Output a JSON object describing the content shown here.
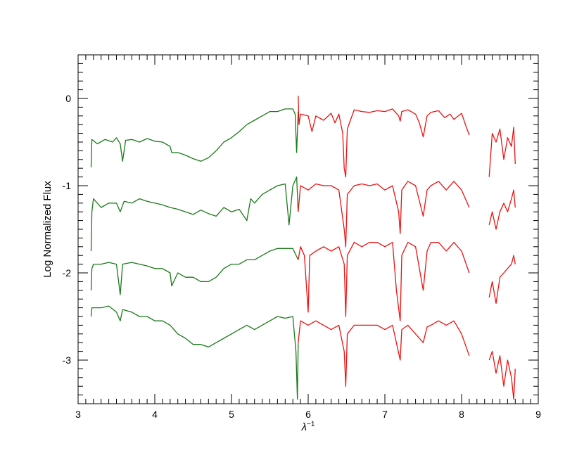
{
  "chart_data": {
    "type": "line",
    "title": "",
    "xlabel": "λ",
    "xlabel_sup": "−1",
    "ylabel": "Log Normalized Flux",
    "xlim": [
      3,
      9
    ],
    "ylim": [
      -3.5,
      0.5
    ],
    "x_ticks": [
      {
        "value": 3,
        "label": "3"
      },
      {
        "value": 4,
        "label": "4"
      },
      {
        "value": 5,
        "label": "5"
      },
      {
        "value": 6,
        "label": "6"
      },
      {
        "value": 7,
        "label": "7"
      },
      {
        "value": 8,
        "label": "8"
      },
      {
        "value": 9,
        "label": "9"
      }
    ],
    "y_ticks": [
      {
        "value": 0,
        "label": "0"
      },
      {
        "value": -1,
        "label": "-1"
      },
      {
        "value": -2,
        "label": "-2"
      },
      {
        "value": -3,
        "label": "-3"
      }
    ],
    "x_minor_step": 0.1,
    "y_minor_step": 0.1,
    "grid": false,
    "legend": "none",
    "colors": {
      "low_range": "#1a7a1a",
      "high_range": "#ee1111"
    },
    "series": [
      {
        "color": "#1a7a1a",
        "points": [
          [
            3.17,
            -0.79
          ],
          [
            3.18,
            -0.47
          ],
          [
            3.25,
            -0.52
          ],
          [
            3.35,
            -0.47
          ],
          [
            3.45,
            -0.5
          ],
          [
            3.5,
            -0.45
          ],
          [
            3.55,
            -0.52
          ],
          [
            3.58,
            -0.72
          ],
          [
            3.62,
            -0.48
          ],
          [
            3.7,
            -0.47
          ],
          [
            3.8,
            -0.5
          ],
          [
            3.9,
            -0.46
          ],
          [
            4.0,
            -0.49
          ],
          [
            4.1,
            -0.5
          ],
          [
            4.2,
            -0.55
          ],
          [
            4.22,
            -0.62
          ],
          [
            4.3,
            -0.62
          ],
          [
            4.4,
            -0.65
          ],
          [
            4.5,
            -0.69
          ],
          [
            4.6,
            -0.72
          ],
          [
            4.7,
            -0.68
          ],
          [
            4.8,
            -0.6
          ],
          [
            4.9,
            -0.5
          ],
          [
            5.0,
            -0.45
          ],
          [
            5.1,
            -0.38
          ],
          [
            5.2,
            -0.3
          ],
          [
            5.3,
            -0.25
          ],
          [
            5.4,
            -0.2
          ],
          [
            5.5,
            -0.15
          ],
          [
            5.6,
            -0.15
          ],
          [
            5.7,
            -0.12
          ],
          [
            5.8,
            -0.12
          ],
          [
            5.83,
            -0.18
          ],
          [
            5.85,
            -0.62
          ],
          [
            5.87,
            -0.15
          ]
        ]
      },
      {
        "color": "#ee1111",
        "points": [
          [
            5.87,
            0.03
          ],
          [
            5.88,
            -0.3
          ],
          [
            5.9,
            -0.18
          ],
          [
            6.0,
            -0.2
          ],
          [
            6.05,
            -0.38
          ],
          [
            6.1,
            -0.2
          ],
          [
            6.2,
            -0.25
          ],
          [
            6.3,
            -0.17
          ],
          [
            6.35,
            -0.28
          ],
          [
            6.4,
            -0.18
          ],
          [
            6.45,
            -0.4
          ],
          [
            6.47,
            -0.8
          ],
          [
            6.49,
            -0.9
          ],
          [
            6.51,
            -0.35
          ],
          [
            6.6,
            -0.13
          ],
          [
            6.7,
            -0.15
          ],
          [
            6.8,
            -0.16
          ],
          [
            6.9,
            -0.14
          ],
          [
            7.0,
            -0.15
          ],
          [
            7.1,
            -0.12
          ],
          [
            7.18,
            -0.2
          ],
          [
            7.2,
            -0.26
          ],
          [
            7.22,
            -0.15
          ],
          [
            7.3,
            -0.13
          ],
          [
            7.4,
            -0.18
          ],
          [
            7.45,
            -0.28
          ],
          [
            7.5,
            -0.44
          ],
          [
            7.55,
            -0.2
          ],
          [
            7.6,
            -0.16
          ],
          [
            7.7,
            -0.14
          ],
          [
            7.78,
            -0.22
          ],
          [
            7.85,
            -0.18
          ],
          [
            7.9,
            -0.24
          ],
          [
            8.0,
            -0.17
          ],
          [
            8.05,
            -0.3
          ],
          [
            8.1,
            -0.42
          ]
        ]
      },
      {
        "color": "#ee1111",
        "points": [
          [
            8.36,
            -0.9
          ],
          [
            8.4,
            -0.4
          ],
          [
            8.45,
            -0.5
          ],
          [
            8.5,
            -0.35
          ],
          [
            8.55,
            -0.7
          ],
          [
            8.6,
            -0.45
          ],
          [
            8.65,
            -0.55
          ],
          [
            8.68,
            -0.33
          ],
          [
            8.7,
            -0.75
          ]
        ]
      },
      {
        "color": "#1a7a1a",
        "points": [
          [
            3.17,
            -1.75
          ],
          [
            3.18,
            -1.3
          ],
          [
            3.2,
            -1.15
          ],
          [
            3.3,
            -1.25
          ],
          [
            3.4,
            -1.2
          ],
          [
            3.5,
            -1.2
          ],
          [
            3.55,
            -1.3
          ],
          [
            3.6,
            -1.18
          ],
          [
            3.7,
            -1.2
          ],
          [
            3.8,
            -1.15
          ],
          [
            3.9,
            -1.18
          ],
          [
            4.0,
            -1.2
          ],
          [
            4.1,
            -1.22
          ],
          [
            4.2,
            -1.25
          ],
          [
            4.3,
            -1.27
          ],
          [
            4.4,
            -1.3
          ],
          [
            4.5,
            -1.33
          ],
          [
            4.6,
            -1.28
          ],
          [
            4.7,
            -1.32
          ],
          [
            4.8,
            -1.35
          ],
          [
            4.9,
            -1.25
          ],
          [
            5.0,
            -1.3
          ],
          [
            5.1,
            -1.27
          ],
          [
            5.2,
            -1.4
          ],
          [
            5.25,
            -1.15
          ],
          [
            5.3,
            -1.2
          ],
          [
            5.4,
            -1.1
          ],
          [
            5.5,
            -1.05
          ],
          [
            5.6,
            -1.0
          ],
          [
            5.7,
            -0.98
          ],
          [
            5.75,
            -1.45
          ],
          [
            5.8,
            -1.0
          ],
          [
            5.85,
            -0.9
          ],
          [
            5.87,
            -1.3
          ]
        ]
      },
      {
        "color": "#ee1111",
        "points": [
          [
            5.87,
            -1.3
          ],
          [
            5.9,
            -1.0
          ],
          [
            6.0,
            -1.05
          ],
          [
            6.1,
            -0.98
          ],
          [
            6.2,
            -1.0
          ],
          [
            6.3,
            -1.0
          ],
          [
            6.4,
            -1.05
          ],
          [
            6.47,
            -1.5
          ],
          [
            6.49,
            -1.7
          ],
          [
            6.51,
            -1.1
          ],
          [
            6.6,
            -1.0
          ],
          [
            6.7,
            -0.98
          ],
          [
            6.8,
            -1.0
          ],
          [
            6.9,
            -0.98
          ],
          [
            7.0,
            -1.05
          ],
          [
            7.1,
            -1.0
          ],
          [
            7.18,
            -1.3
          ],
          [
            7.2,
            -1.55
          ],
          [
            7.22,
            -1.05
          ],
          [
            7.3,
            -0.95
          ],
          [
            7.4,
            -1.0
          ],
          [
            7.5,
            -1.35
          ],
          [
            7.55,
            -1.05
          ],
          [
            7.6,
            -1.0
          ],
          [
            7.7,
            -0.95
          ],
          [
            7.8,
            -1.05
          ],
          [
            7.9,
            -0.95
          ],
          [
            8.0,
            -1.05
          ],
          [
            8.1,
            -1.25
          ]
        ]
      },
      {
        "color": "#ee1111",
        "points": [
          [
            8.36,
            -1.45
          ],
          [
            8.4,
            -1.3
          ],
          [
            8.45,
            -1.5
          ],
          [
            8.5,
            -1.3
          ],
          [
            8.55,
            -1.2
          ],
          [
            8.6,
            -1.3
          ],
          [
            8.65,
            -1.15
          ],
          [
            8.68,
            -1.05
          ],
          [
            8.7,
            -1.25
          ]
        ]
      },
      {
        "color": "#1a7a1a",
        "points": [
          [
            3.17,
            -2.2
          ],
          [
            3.18,
            -1.95
          ],
          [
            3.2,
            -1.9
          ],
          [
            3.3,
            -1.9
          ],
          [
            3.4,
            -1.88
          ],
          [
            3.5,
            -1.9
          ],
          [
            3.55,
            -2.25
          ],
          [
            3.58,
            -1.9
          ],
          [
            3.7,
            -1.88
          ],
          [
            3.8,
            -1.9
          ],
          [
            3.9,
            -1.92
          ],
          [
            4.0,
            -1.95
          ],
          [
            4.1,
            -1.95
          ],
          [
            4.2,
            -2.0
          ],
          [
            4.22,
            -2.15
          ],
          [
            4.3,
            -2.0
          ],
          [
            4.4,
            -2.05
          ],
          [
            4.5,
            -2.05
          ],
          [
            4.6,
            -2.1
          ],
          [
            4.7,
            -2.1
          ],
          [
            4.8,
            -2.05
          ],
          [
            4.9,
            -1.95
          ],
          [
            5.0,
            -1.9
          ],
          [
            5.1,
            -1.9
          ],
          [
            5.2,
            -1.85
          ],
          [
            5.3,
            -1.85
          ],
          [
            5.4,
            -1.8
          ],
          [
            5.5,
            -1.75
          ],
          [
            5.6,
            -1.72
          ],
          [
            5.7,
            -1.72
          ],
          [
            5.8,
            -1.72
          ],
          [
            5.87,
            -1.85
          ]
        ]
      },
      {
        "color": "#ee1111",
        "points": [
          [
            5.87,
            -1.85
          ],
          [
            5.9,
            -1.7
          ],
          [
            5.95,
            -1.8
          ],
          [
            6.0,
            -2.45
          ],
          [
            6.02,
            -1.8
          ],
          [
            6.1,
            -1.75
          ],
          [
            6.2,
            -1.7
          ],
          [
            6.3,
            -1.75
          ],
          [
            6.4,
            -1.7
          ],
          [
            6.47,
            -1.9
          ],
          [
            6.49,
            -2.5
          ],
          [
            6.51,
            -1.8
          ],
          [
            6.6,
            -1.65
          ],
          [
            6.7,
            -1.7
          ],
          [
            6.8,
            -1.65
          ],
          [
            6.9,
            -1.65
          ],
          [
            7.0,
            -1.7
          ],
          [
            7.1,
            -1.65
          ],
          [
            7.15,
            -2.2
          ],
          [
            7.2,
            -2.55
          ],
          [
            7.22,
            -1.8
          ],
          [
            7.3,
            -1.65
          ],
          [
            7.4,
            -1.7
          ],
          [
            7.5,
            -2.2
          ],
          [
            7.55,
            -1.75
          ],
          [
            7.6,
            -1.65
          ],
          [
            7.7,
            -1.65
          ],
          [
            7.8,
            -1.75
          ],
          [
            7.9,
            -1.65
          ],
          [
            8.0,
            -1.75
          ],
          [
            8.1,
            -2.0
          ]
        ]
      },
      {
        "color": "#ee1111",
        "points": [
          [
            8.36,
            -2.28
          ],
          [
            8.4,
            -2.1
          ],
          [
            8.45,
            -2.35
          ],
          [
            8.5,
            -2.05
          ],
          [
            8.55,
            -2.0
          ],
          [
            8.6,
            -1.95
          ],
          [
            8.65,
            -1.9
          ],
          [
            8.68,
            -1.8
          ],
          [
            8.7,
            -1.9
          ]
        ]
      },
      {
        "color": "#1a7a1a",
        "points": [
          [
            3.17,
            -2.5
          ],
          [
            3.18,
            -2.4
          ],
          [
            3.3,
            -2.4
          ],
          [
            3.4,
            -2.38
          ],
          [
            3.5,
            -2.45
          ],
          [
            3.55,
            -2.55
          ],
          [
            3.58,
            -2.42
          ],
          [
            3.7,
            -2.45
          ],
          [
            3.8,
            -2.5
          ],
          [
            3.9,
            -2.5
          ],
          [
            4.0,
            -2.55
          ],
          [
            4.1,
            -2.55
          ],
          [
            4.2,
            -2.6
          ],
          [
            4.3,
            -2.7
          ],
          [
            4.4,
            -2.75
          ],
          [
            4.5,
            -2.82
          ],
          [
            4.6,
            -2.82
          ],
          [
            4.7,
            -2.85
          ],
          [
            4.8,
            -2.8
          ],
          [
            4.9,
            -2.75
          ],
          [
            5.0,
            -2.7
          ],
          [
            5.1,
            -2.65
          ],
          [
            5.2,
            -2.6
          ],
          [
            5.3,
            -2.65
          ],
          [
            5.4,
            -2.6
          ],
          [
            5.5,
            -2.55
          ],
          [
            5.6,
            -2.5
          ],
          [
            5.7,
            -2.52
          ],
          [
            5.8,
            -2.5
          ],
          [
            5.84,
            -2.9
          ],
          [
            5.86,
            -3.45
          ],
          [
            5.87,
            -2.8
          ]
        ]
      },
      {
        "color": "#ee1111",
        "points": [
          [
            5.87,
            -2.8
          ],
          [
            5.9,
            -2.55
          ],
          [
            6.0,
            -2.6
          ],
          [
            6.1,
            -2.55
          ],
          [
            6.2,
            -2.6
          ],
          [
            6.3,
            -2.65
          ],
          [
            6.4,
            -2.6
          ],
          [
            6.47,
            -2.9
          ],
          [
            6.49,
            -3.3
          ],
          [
            6.51,
            -2.7
          ],
          [
            6.6,
            -2.6
          ],
          [
            6.7,
            -2.6
          ],
          [
            6.8,
            -2.6
          ],
          [
            6.9,
            -2.6
          ],
          [
            7.0,
            -2.65
          ],
          [
            7.1,
            -2.6
          ],
          [
            7.2,
            -3.0
          ],
          [
            7.22,
            -2.65
          ],
          [
            7.3,
            -2.6
          ],
          [
            7.4,
            -2.7
          ],
          [
            7.5,
            -2.8
          ],
          [
            7.55,
            -2.62
          ],
          [
            7.6,
            -2.6
          ],
          [
            7.7,
            -2.55
          ],
          [
            7.8,
            -2.6
          ],
          [
            7.9,
            -2.55
          ],
          [
            8.0,
            -2.7
          ],
          [
            8.1,
            -2.95
          ]
        ]
      },
      {
        "color": "#ee1111",
        "points": [
          [
            8.36,
            -3.0
          ],
          [
            8.4,
            -2.9
          ],
          [
            8.45,
            -3.15
          ],
          [
            8.5,
            -2.95
          ],
          [
            8.55,
            -3.3
          ],
          [
            8.6,
            -3.0
          ],
          [
            8.65,
            -3.2
          ],
          [
            8.68,
            -3.45
          ],
          [
            8.7,
            -3.1
          ]
        ]
      }
    ]
  }
}
